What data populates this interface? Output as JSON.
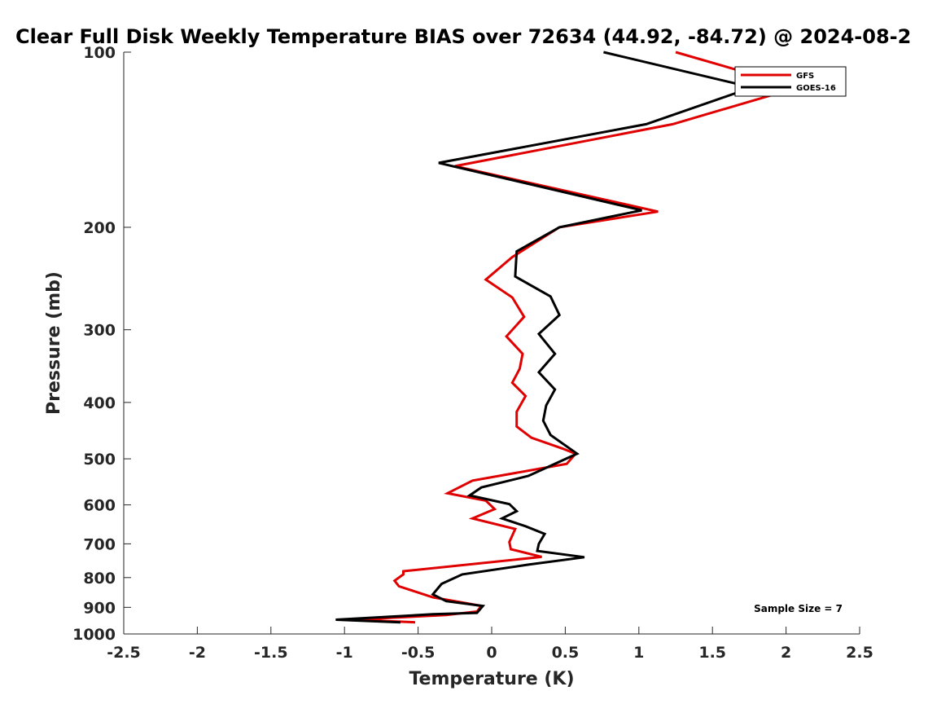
{
  "chart_data": {
    "type": "line",
    "title": "Clear Full Disk Weekly Temperature BIAS over 72634 (44.92, -84.72) @ 2024-08-2",
    "xlabel": "Temperature (K)",
    "ylabel": "Pressure (mb)",
    "xlim": [
      -2.5,
      2.5
    ],
    "ylim": [
      1000,
      100
    ],
    "yscale": "log",
    "xticks": [
      "-2.5",
      "-2",
      "-1.5",
      "-1",
      "-0.5",
      "0",
      "0.5",
      "1",
      "1.5",
      "2",
      "2.5"
    ],
    "yticks": [
      "100",
      "200",
      "300",
      "400",
      "500",
      "600",
      "700",
      "800",
      "900",
      "1000"
    ],
    "grid": false,
    "legend_position": "top-right",
    "annotation": "Sample Size = 7",
    "series": [
      {
        "name": "GFS",
        "color": "#e00000",
        "x": [
          1.25,
          2.08,
          1.23,
          -0.25,
          1.13,
          0.46,
          0.14,
          -0.04,
          0.14,
          0.22,
          0.1,
          0.21,
          0.19,
          0.14,
          0.23,
          0.17,
          0.17,
          0.27,
          0.48,
          0.57,
          0.51,
          -0.13,
          -0.3,
          -0.04,
          0.02,
          -0.13,
          0.16,
          0.12,
          0.13,
          0.34,
          -0.6,
          -0.6,
          -0.66,
          -0.63,
          -0.4,
          -0.07,
          -0.1,
          -0.31,
          -0.94,
          -0.52
        ],
        "y": [
          100,
          115,
          133,
          157,
          188,
          200,
          225,
          246,
          264,
          285,
          308,
          330,
          350,
          370,
          390,
          415,
          440,
          460,
          480,
          490,
          510,
          545,
          573,
          590,
          610,
          633,
          660,
          695,
          715,
          737,
          780,
          790,
          810,
          828,
          865,
          895,
          915,
          928,
          945,
          955
        ]
      },
      {
        "name": "GOES-16",
        "color": "#000000",
        "x": [
          0.76,
          1.77,
          1.05,
          -0.36,
          1.02,
          0.46,
          0.17,
          0.16,
          0.4,
          0.46,
          0.32,
          0.43,
          0.32,
          0.43,
          0.37,
          0.35,
          0.4,
          0.58,
          0.25,
          -0.07,
          -0.15,
          0.12,
          0.17,
          0.07,
          0.23,
          0.36,
          0.32,
          0.31,
          0.63,
          0.25,
          -0.2,
          -0.34,
          -0.4,
          -0.31,
          -0.06,
          -0.1,
          -0.4,
          -1.06,
          -0.62
        ],
        "y": [
          100,
          115,
          133,
          155,
          187,
          200,
          220,
          243,
          263,
          283,
          305,
          330,
          355,
          380,
          405,
          430,
          455,
          490,
          535,
          560,
          578,
          598,
          615,
          633,
          653,
          673,
          700,
          720,
          738,
          760,
          790,
          820,
          855,
          878,
          895,
          920,
          925,
          945,
          955
        ]
      }
    ]
  }
}
